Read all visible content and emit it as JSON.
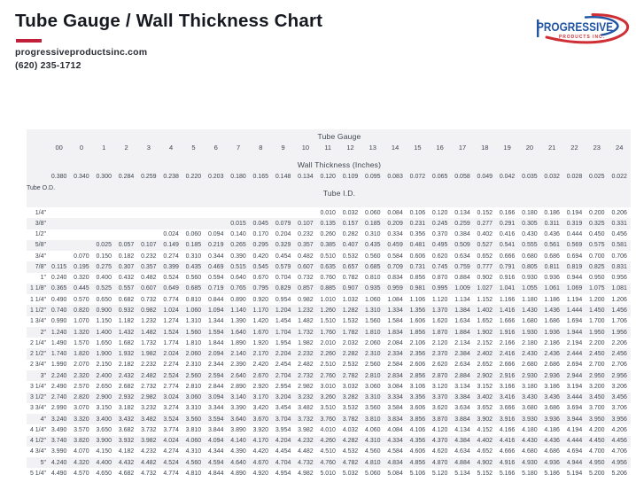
{
  "page": {
    "title": "Tube Gauge / Wall Thickness Chart",
    "website": "progressiveproductsinc.com",
    "phone": "(620) 235-1712"
  },
  "logo": {
    "name": "PROGRESSIVE",
    "subname": "PRODUCTS INC.",
    "blue": "#2155a3",
    "red": "#cf2e35"
  },
  "colors": {
    "accent_red": "#c21f3a",
    "band_gray": "#f2f2f4",
    "text": "#3d4450"
  },
  "table": {
    "gauge_header": "Tube Gauge",
    "wall_header": "Wall Thickness (Inches)",
    "id_header": "Tube I.D.",
    "od_header": "Tube O.D.",
    "gauges": [
      "00",
      "0",
      "1",
      "2",
      "3",
      "4",
      "5",
      "6",
      "7",
      "8",
      "9",
      "10",
      "11",
      "12",
      "13",
      "14",
      "15",
      "16",
      "17",
      "18",
      "19",
      "20",
      "21",
      "22",
      "23",
      "24"
    ],
    "wall_thickness": [
      "0.380",
      "0.340",
      "0.300",
      "0.284",
      "0.259",
      "0.238",
      "0.220",
      "0.203",
      "0.180",
      "0.165",
      "0.148",
      "0.134",
      "0.120",
      "0.109",
      "0.095",
      "0.083",
      "0.072",
      "0.065",
      "0.058",
      "0.049",
      "0.042",
      "0.035",
      "0.032",
      "0.028",
      "0.025",
      "0.022"
    ],
    "rows": [
      {
        "od": "1/4\"",
        "values": [
          "",
          "",
          "",
          "",
          "",
          "",
          "",
          "",
          "",
          "",
          "",
          "",
          "0.010",
          "0.032",
          "0.060",
          "0.084",
          "0.106",
          "0.120",
          "0.134",
          "0.152",
          "0.166",
          "0.180",
          "0.186",
          "0.194",
          "0.200",
          "0.206"
        ]
      },
      {
        "od": "3/8\"",
        "values": [
          "",
          "",
          "",
          "",
          "",
          "",
          "",
          "",
          "0.015",
          "0.045",
          "0.079",
          "0.107",
          "0.135",
          "0.157",
          "0.185",
          "0.209",
          "0.231",
          "0.245",
          "0.259",
          "0.277",
          "0.291",
          "0.305",
          "0.311",
          "0.319",
          "0.325",
          "0.331"
        ]
      },
      {
        "od": "1/2\"",
        "values": [
          "",
          "",
          "",
          "",
          "",
          "0.024",
          "0.060",
          "0.094",
          "0.140",
          "0.170",
          "0.204",
          "0.232",
          "0.260",
          "0.282",
          "0.310",
          "0.334",
          "0.356",
          "0.370",
          "0.384",
          "0.402",
          "0.416",
          "0.430",
          "0.436",
          "0.444",
          "0.450",
          "0.456"
        ]
      },
      {
        "od": "5/8\"",
        "values": [
          "",
          "",
          "0.025",
          "0.057",
          "0.107",
          "0.149",
          "0.185",
          "0.219",
          "0.265",
          "0.295",
          "0.329",
          "0.357",
          "0.385",
          "0.407",
          "0.435",
          "0.459",
          "0.481",
          "0.495",
          "0.509",
          "0.527",
          "0.541",
          "0.555",
          "0.561",
          "0.569",
          "0.575",
          "0.581"
        ]
      },
      {
        "od": "3/4\"",
        "values": [
          "",
          "0.070",
          "0.150",
          "0.182",
          "0.232",
          "0.274",
          "0.310",
          "0.344",
          "0.390",
          "0.420",
          "0.454",
          "0.482",
          "0.510",
          "0.532",
          "0.560",
          "0.584",
          "0.606",
          "0.620",
          "0.634",
          "0.652",
          "0.666",
          "0.680",
          "0.686",
          "0.694",
          "0.700",
          "0.706"
        ]
      },
      {
        "od": "7/8\"",
        "values": [
          "0.115",
          "0.195",
          "0.275",
          "0.307",
          "0.357",
          "0.399",
          "0.435",
          "0.469",
          "0.515",
          "0.545",
          "0.579",
          "0.607",
          "0.635",
          "0.657",
          "0.685",
          "0.709",
          "0.731",
          "0.745",
          "0.759",
          "0.777",
          "0.791",
          "0.805",
          "0.811",
          "0.819",
          "0.825",
          "0.831"
        ]
      },
      {
        "od": "1\"",
        "values": [
          "0.240",
          "0.320",
          "0.400",
          "0.432",
          "0.482",
          "0.524",
          "0.560",
          "0.594",
          "0.640",
          "0.670",
          "0.704",
          "0.732",
          "0.760",
          "0.782",
          "0.810",
          "0.834",
          "0.856",
          "0.870",
          "0.884",
          "0.902",
          "0.916",
          "0.930",
          "0.936",
          "0.944",
          "0.950",
          "0.956"
        ]
      },
      {
        "od": "1 1/8\"",
        "values": [
          "0.365",
          "0.445",
          "0.525",
          "0.557",
          "0.607",
          "0.649",
          "0.685",
          "0.719",
          "0.765",
          "0.795",
          "0.829",
          "0.857",
          "0.885",
          "0.907",
          "0.935",
          "0.959",
          "0.981",
          "0.995",
          "1.009",
          "1.027",
          "1.041",
          "1.055",
          "1.061",
          "1.069",
          "1.075",
          "1.081"
        ]
      },
      {
        "od": "1 1/4\"",
        "values": [
          "0.490",
          "0.570",
          "0.650",
          "0.682",
          "0.732",
          "0.774",
          "0.810",
          "0.844",
          "0.890",
          "0.920",
          "0.954",
          "0.982",
          "1.010",
          "1.032",
          "1.060",
          "1.084",
          "1.106",
          "1.120",
          "1.134",
          "1.152",
          "1.166",
          "1.180",
          "1.186",
          "1.194",
          "1.200",
          "1.206"
        ]
      },
      {
        "od": "1 1/2\"",
        "values": [
          "0.740",
          "0.820",
          "0.900",
          "0.932",
          "0.982",
          "1.024",
          "1.060",
          "1.094",
          "1.140",
          "1.170",
          "1.204",
          "1.232",
          "1.260",
          "1.282",
          "1.310",
          "1.334",
          "1.356",
          "1.370",
          "1.384",
          "1.402",
          "1.416",
          "1.430",
          "1.436",
          "1.444",
          "1.450",
          "1.456"
        ]
      },
      {
        "od": "1 3/4\"",
        "values": [
          "0.990",
          "1.070",
          "1.150",
          "1.182",
          "1.232",
          "1.274",
          "1.310",
          "1.344",
          "1.390",
          "1.420",
          "1.454",
          "1.482",
          "1.510",
          "1.532",
          "1.560",
          "1.584",
          "1.606",
          "1.620",
          "1.634",
          "1.652",
          "1.666",
          "1.680",
          "1.686",
          "1.694",
          "1.700",
          "1.706"
        ]
      },
      {
        "od": "2\"",
        "values": [
          "1.240",
          "1.320",
          "1.400",
          "1.432",
          "1.482",
          "1.524",
          "1.560",
          "1.594",
          "1.640",
          "1.670",
          "1.704",
          "1.732",
          "1.760",
          "1.782",
          "1.810",
          "1.834",
          "1.856",
          "1.870",
          "1.884",
          "1.902",
          "1.916",
          "1.930",
          "1.936",
          "1.944",
          "1.950",
          "1.956"
        ]
      },
      {
        "od": "2 1/4\"",
        "values": [
          "1.490",
          "1.570",
          "1.650",
          "1.682",
          "1.732",
          "1.774",
          "1.810",
          "1.844",
          "1.890",
          "1.920",
          "1.954",
          "1.982",
          "2.010",
          "2.032",
          "2.060",
          "2.084",
          "2.106",
          "2.120",
          "2.134",
          "2.152",
          "2.166",
          "2.180",
          "2.186",
          "2.194",
          "2.200",
          "2.206"
        ]
      },
      {
        "od": "2 1/2\"",
        "values": [
          "1.740",
          "1.820",
          "1.900",
          "1.932",
          "1.982",
          "2.024",
          "2.060",
          "2.094",
          "2.140",
          "2.170",
          "2.204",
          "2.232",
          "2.260",
          "2.282",
          "2.310",
          "2.334",
          "2.356",
          "2.370",
          "2.384",
          "2.402",
          "2.416",
          "2.430",
          "2.436",
          "2.444",
          "2.450",
          "2.456"
        ]
      },
      {
        "od": "2 3/4\"",
        "values": [
          "1.990",
          "2.070",
          "2.150",
          "2.182",
          "2.232",
          "2.274",
          "2.310",
          "2.344",
          "2.390",
          "2.420",
          "2.454",
          "2.482",
          "2.510",
          "2.532",
          "2.560",
          "2.584",
          "2.606",
          "2.620",
          "2.634",
          "2.652",
          "2.666",
          "2.680",
          "2.686",
          "2.694",
          "2.700",
          "2.706"
        ]
      },
      {
        "od": "3\"",
        "values": [
          "2.240",
          "2.320",
          "2.400",
          "2.432",
          "2.482",
          "2.524",
          "2.560",
          "2.594",
          "2.640",
          "2.670",
          "2.704",
          "2.732",
          "2.760",
          "2.782",
          "2.810",
          "2.834",
          "2.856",
          "2.870",
          "2.884",
          "2.902",
          "2.916",
          "2.930",
          "2.936",
          "2.944",
          "2.950",
          "2.956"
        ]
      },
      {
        "od": "3 1/4\"",
        "values": [
          "2.490",
          "2.570",
          "2.650",
          "2.682",
          "2.732",
          "2.774",
          "2.810",
          "2.844",
          "2.890",
          "2.920",
          "2.954",
          "2.982",
          "3.010",
          "3.032",
          "3.060",
          "3.084",
          "3.106",
          "3.120",
          "3.134",
          "3.152",
          "3.166",
          "3.180",
          "3.186",
          "3.194",
          "3.200",
          "3.206"
        ]
      },
      {
        "od": "3 1/2\"",
        "values": [
          "2.740",
          "2.820",
          "2.900",
          "2.932",
          "2.982",
          "3.024",
          "3.060",
          "3.094",
          "3.140",
          "3.170",
          "3.204",
          "3.232",
          "3.260",
          "3.282",
          "3.310",
          "3.334",
          "3.356",
          "3.370",
          "3.384",
          "3.402",
          "3.416",
          "3.430",
          "3.436",
          "3.444",
          "3.450",
          "3.456"
        ]
      },
      {
        "od": "3 3/4\"",
        "values": [
          "2.990",
          "3.070",
          "3.150",
          "3.182",
          "3.232",
          "3.274",
          "3.310",
          "3.344",
          "3.390",
          "3.420",
          "3.454",
          "3.482",
          "3.510",
          "3.532",
          "3.560",
          "3.584",
          "3.606",
          "3.620",
          "3.634",
          "3.652",
          "3.666",
          "3.680",
          "3.686",
          "3.694",
          "3.700",
          "3.706"
        ]
      },
      {
        "od": "4\"",
        "values": [
          "3.240",
          "3.320",
          "3.400",
          "3.432",
          "3.482",
          "3.524",
          "3.560",
          "3.594",
          "3.640",
          "3.670",
          "3.704",
          "3.732",
          "3.760",
          "3.782",
          "3.810",
          "3.834",
          "3.856",
          "3.870",
          "3.884",
          "3.902",
          "3.916",
          "3.930",
          "3.936",
          "3.944",
          "3.950",
          "3.956"
        ]
      },
      {
        "od": "4 1/4\"",
        "values": [
          "3.490",
          "3.570",
          "3.650",
          "3.682",
          "3.732",
          "3.774",
          "3.810",
          "3.844",
          "3.890",
          "3.920",
          "3.954",
          "3.982",
          "4.010",
          "4.032",
          "4.060",
          "4.084",
          "4.106",
          "4.120",
          "4.134",
          "4.152",
          "4.166",
          "4.180",
          "4.186",
          "4.194",
          "4.200",
          "4.206"
        ]
      },
      {
        "od": "4 1/2\"",
        "values": [
          "3.740",
          "3.820",
          "3.900",
          "3.932",
          "3.982",
          "4.024",
          "4.060",
          "4.094",
          "4.140",
          "4.170",
          "4.204",
          "4.232",
          "4.260",
          "4.282",
          "4.310",
          "4.334",
          "4.356",
          "4.370",
          "4.384",
          "4.402",
          "4.416",
          "4.430",
          "4.436",
          "4.444",
          "4.450",
          "4.456"
        ]
      },
      {
        "od": "4 3/4\"",
        "values": [
          "3.990",
          "4.070",
          "4.150",
          "4.182",
          "4.232",
          "4.274",
          "4.310",
          "4.344",
          "4.390",
          "4.420",
          "4.454",
          "4.482",
          "4.510",
          "4.532",
          "4.560",
          "4.584",
          "4.606",
          "4.620",
          "4.634",
          "4.652",
          "4.666",
          "4.680",
          "4.686",
          "4.694",
          "4.700",
          "4.706"
        ]
      },
      {
        "od": "5\"",
        "values": [
          "4.240",
          "4.320",
          "4.400",
          "4.432",
          "4.482",
          "4.524",
          "4.560",
          "4.594",
          "4.640",
          "4.670",
          "4.704",
          "4.732",
          "4.760",
          "4.782",
          "4.810",
          "4.834",
          "4.856",
          "4.870",
          "4.884",
          "4.902",
          "4.916",
          "4.930",
          "4.936",
          "4.944",
          "4.950",
          "4.956"
        ]
      },
      {
        "od": "5 1/4\"",
        "values": [
          "4.490",
          "4.570",
          "4.650",
          "4.682",
          "4.732",
          "4.774",
          "4.810",
          "4.844",
          "4.890",
          "4.920",
          "4.954",
          "4.982",
          "5.010",
          "5.032",
          "5.060",
          "5.084",
          "5.106",
          "5.120",
          "5.134",
          "5.152",
          "5.166",
          "5.180",
          "5.186",
          "5.194",
          "5.200",
          "5.206"
        ]
      }
    ]
  }
}
